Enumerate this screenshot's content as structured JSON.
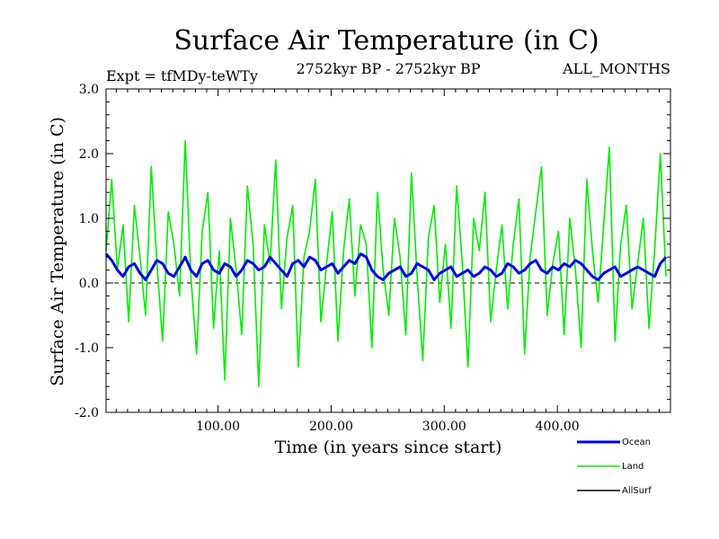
{
  "chart_data": {
    "type": "line",
    "title": "Surface Air Temperature (in C)",
    "experiment_label": "Expt = tfMDy-teWTy",
    "period_label": "2752kyr BP - 2752kyr BP",
    "months_label": "ALL_MONTHS",
    "xlabel": "Time (in years since start)",
    "ylabel": "Surface Air Temperature (in C)",
    "xlim": [
      1,
      500
    ],
    "ylim": [
      -2.0,
      3.0
    ],
    "x_ticks": [
      100,
      200,
      300,
      400
    ],
    "x_tick_labels": [
      "100.00",
      "200.00",
      "300.00",
      "400.00"
    ],
    "y_ticks": [
      -2.0,
      -1.0,
      0.0,
      1.0,
      2.0,
      3.0
    ],
    "y_tick_labels": [
      "-2.0",
      "-1.0",
      "0.0",
      "1.0",
      "2.0",
      "3.0"
    ],
    "zero_line": true,
    "series": [
      {
        "name": "Land",
        "color": "#00ee00",
        "x_start": 1,
        "x_step": 5,
        "values": [
          0.5,
          1.6,
          0.2,
          0.9,
          -0.6,
          1.2,
          0.4,
          -0.5,
          1.8,
          0.3,
          -0.9,
          1.1,
          0.6,
          -0.2,
          2.2,
          0.1,
          -1.1,
          0.8,
          1.4,
          -0.7,
          0.5,
          -1.5,
          1.0,
          0.2,
          -0.8,
          1.5,
          0.6,
          -1.6,
          0.9,
          0.3,
          1.9,
          -0.4,
          0.7,
          1.2,
          -1.3,
          0.4,
          0.8,
          1.6,
          -0.6,
          0.3,
          1.1,
          -0.9,
          0.5,
          1.3,
          -0.2,
          0.9,
          0.6,
          -1.0,
          1.4,
          0.2,
          -0.5,
          1.0,
          0.4,
          -0.8,
          1.7,
          0.1,
          -1.2,
          0.7,
          1.2,
          -0.3,
          0.6,
          -0.7,
          1.5,
          0.3,
          -1.3,
          1.0,
          0.5,
          1.4,
          -0.6,
          0.2,
          0.9,
          -0.4,
          0.6,
          1.3,
          -1.1,
          0.4,
          1.1,
          1.8,
          -0.5,
          0.3,
          0.8,
          -0.8,
          1.0,
          0.2,
          -1.0,
          1.6,
          0.5,
          -0.3,
          0.9,
          2.1,
          -0.9,
          0.6,
          1.2,
          -0.4,
          0.3,
          1.0,
          -0.7,
          0.5,
          2.0,
          0.1
        ]
      },
      {
        "name": "Ocean",
        "color": "#0000ee",
        "x_start": 1,
        "x_step": 5,
        "values": [
          0.45,
          0.35,
          0.2,
          0.1,
          0.25,
          0.3,
          0.15,
          0.05,
          0.2,
          0.35,
          0.3,
          0.15,
          0.1,
          0.25,
          0.4,
          0.2,
          0.1,
          0.3,
          0.35,
          0.2,
          0.15,
          0.3,
          0.25,
          0.1,
          0.2,
          0.35,
          0.3,
          0.2,
          0.25,
          0.4,
          0.3,
          0.2,
          0.1,
          0.3,
          0.35,
          0.25,
          0.4,
          0.35,
          0.2,
          0.25,
          0.3,
          0.15,
          0.25,
          0.35,
          0.3,
          0.45,
          0.4,
          0.2,
          0.1,
          0.05,
          0.15,
          0.2,
          0.25,
          0.1,
          0.15,
          0.3,
          0.25,
          0.2,
          0.05,
          0.15,
          0.2,
          0.25,
          0.1,
          0.15,
          0.2,
          0.1,
          0.15,
          0.25,
          0.2,
          0.1,
          0.15,
          0.3,
          0.25,
          0.15,
          0.2,
          0.3,
          0.35,
          0.2,
          0.15,
          0.25,
          0.2,
          0.3,
          0.25,
          0.35,
          0.3,
          0.2,
          0.1,
          0.05,
          0.15,
          0.2,
          0.25,
          0.1,
          0.15,
          0.2,
          0.25,
          0.2,
          0.15,
          0.1,
          0.3,
          0.4
        ]
      },
      {
        "name": "AllSurf",
        "color": "#000000",
        "values": []
      }
    ],
    "legend": [
      {
        "name": "Ocean",
        "color": "#0000ee"
      },
      {
        "name": "Land",
        "color": "#00ee00"
      },
      {
        "name": "AllSurf",
        "color": "#000000"
      }
    ],
    "legend_position": "bottom-right"
  }
}
